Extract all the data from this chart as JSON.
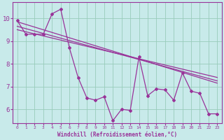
{
  "bg_color": "#c8eaea",
  "line_color": "#993399",
  "grid_color": "#99ccbb",
  "xlabel": "Windchill (Refroidissement éolien,°C)",
  "ylabel_ticks": [
    6,
    7,
    8,
    9,
    10
  ],
  "xlim": [
    -0.5,
    23.5
  ],
  "ylim": [
    5.4,
    10.7
  ],
  "xticks": [
    0,
    1,
    2,
    3,
    4,
    5,
    6,
    7,
    8,
    9,
    10,
    11,
    12,
    13,
    14,
    15,
    16,
    17,
    18,
    19,
    20,
    21,
    22,
    23
  ],
  "series1_x": [
    0,
    1,
    2,
    3,
    4,
    5,
    6,
    7,
    8,
    9,
    10,
    11,
    12,
    13,
    14,
    15,
    16,
    17,
    18,
    19,
    20,
    21,
    22,
    23
  ],
  "series1_y": [
    9.9,
    9.3,
    9.3,
    9.3,
    10.2,
    10.4,
    8.7,
    7.4,
    6.5,
    6.4,
    6.55,
    5.5,
    6.0,
    5.95,
    8.3,
    6.6,
    6.9,
    6.85,
    6.4,
    7.6,
    6.8,
    6.7,
    5.8,
    5.8
  ],
  "trend1_x": [
    0,
    23
  ],
  "trend1_y": [
    9.85,
    7.15
  ],
  "trend2_x": [
    0,
    23
  ],
  "trend2_y": [
    9.5,
    7.4
  ],
  "trend3_x": [
    0,
    23
  ],
  "trend3_y": [
    9.65,
    7.25
  ]
}
